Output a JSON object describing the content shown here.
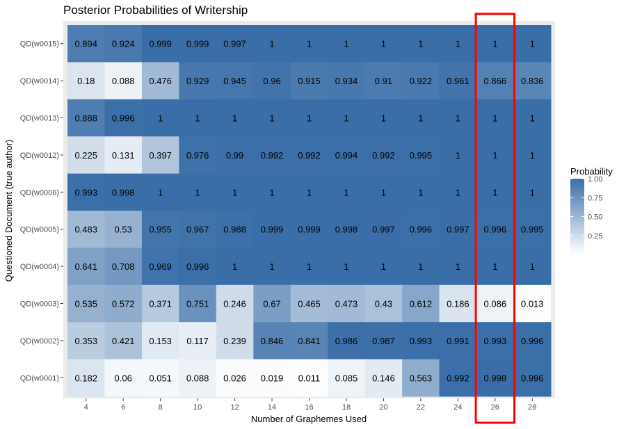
{
  "chart_data": {
    "type": "heatmap",
    "title": "Posterior Probabilities of Writership",
    "xlabel": "Number of Graphemes Used",
    "ylabel": "Questioned Document (true author)",
    "x": [
      "4",
      "6",
      "8",
      "10",
      "12",
      "14",
      "16",
      "18",
      "20",
      "22",
      "24",
      "26",
      "28"
    ],
    "y": [
      "QD(w0015)",
      "QD(w0014)",
      "QD(w0013)",
      "QD(w0012)",
      "QD(w0006)",
      "QD(w0005)",
      "QD(w0004)",
      "QD(w0003)",
      "QD(w0002)",
      "QD(w0001)"
    ],
    "values": [
      [
        0.894,
        0.924,
        0.999,
        0.999,
        0.997,
        1,
        1,
        1,
        1,
        1,
        1,
        1,
        1
      ],
      [
        0.18,
        0.088,
        0.476,
        0.929,
        0.945,
        0.96,
        0.915,
        0.934,
        0.91,
        0.922,
        0.961,
        0.866,
        0.836
      ],
      [
        0.888,
        0.996,
        1,
        1,
        1,
        1,
        1,
        1,
        1,
        1,
        1,
        1,
        1
      ],
      [
        0.225,
        0.131,
        0.397,
        0.976,
        0.99,
        0.992,
        0.992,
        0.994,
        0.992,
        0.995,
        1,
        1,
        1
      ],
      [
        0.993,
        0.998,
        1,
        1,
        1,
        1,
        1,
        1,
        1,
        1,
        1,
        1,
        1
      ],
      [
        0.483,
        0.53,
        0.955,
        0.967,
        0.988,
        0.999,
        0.999,
        0.998,
        0.997,
        0.996,
        0.997,
        0.996,
        0.995
      ],
      [
        0.641,
        0.708,
        0.969,
        0.996,
        1,
        1,
        1,
        1,
        1,
        1,
        1,
        1,
        1
      ],
      [
        0.535,
        0.572,
        0.371,
        0.751,
        0.246,
        0.67,
        0.465,
        0.473,
        0.43,
        0.612,
        0.186,
        0.086,
        0.013
      ],
      [
        0.353,
        0.421,
        0.153,
        0.117,
        0.239,
        0.846,
        0.841,
        0.986,
        0.987,
        0.993,
        0.991,
        0.993,
        0.996
      ],
      [
        0.182,
        0.06,
        0.051,
        0.088,
        0.026,
        0.019,
        0.011,
        0.085,
        0.146,
        0.563,
        0.992,
        0.998,
        0.996
      ]
    ],
    "legend": {
      "title": "Probability",
      "ticks": [
        "1.00",
        "0.75",
        "0.50",
        "0.25"
      ],
      "tick_values": [
        1.0,
        0.75,
        0.5,
        0.25
      ],
      "range": [
        0,
        1
      ],
      "color_low": "#ffffff",
      "color_high": "#3a6ea8"
    },
    "grid": true,
    "panel_background": "#ebebeb",
    "highlight": {
      "column": "26",
      "color": "#ff0000"
    }
  }
}
